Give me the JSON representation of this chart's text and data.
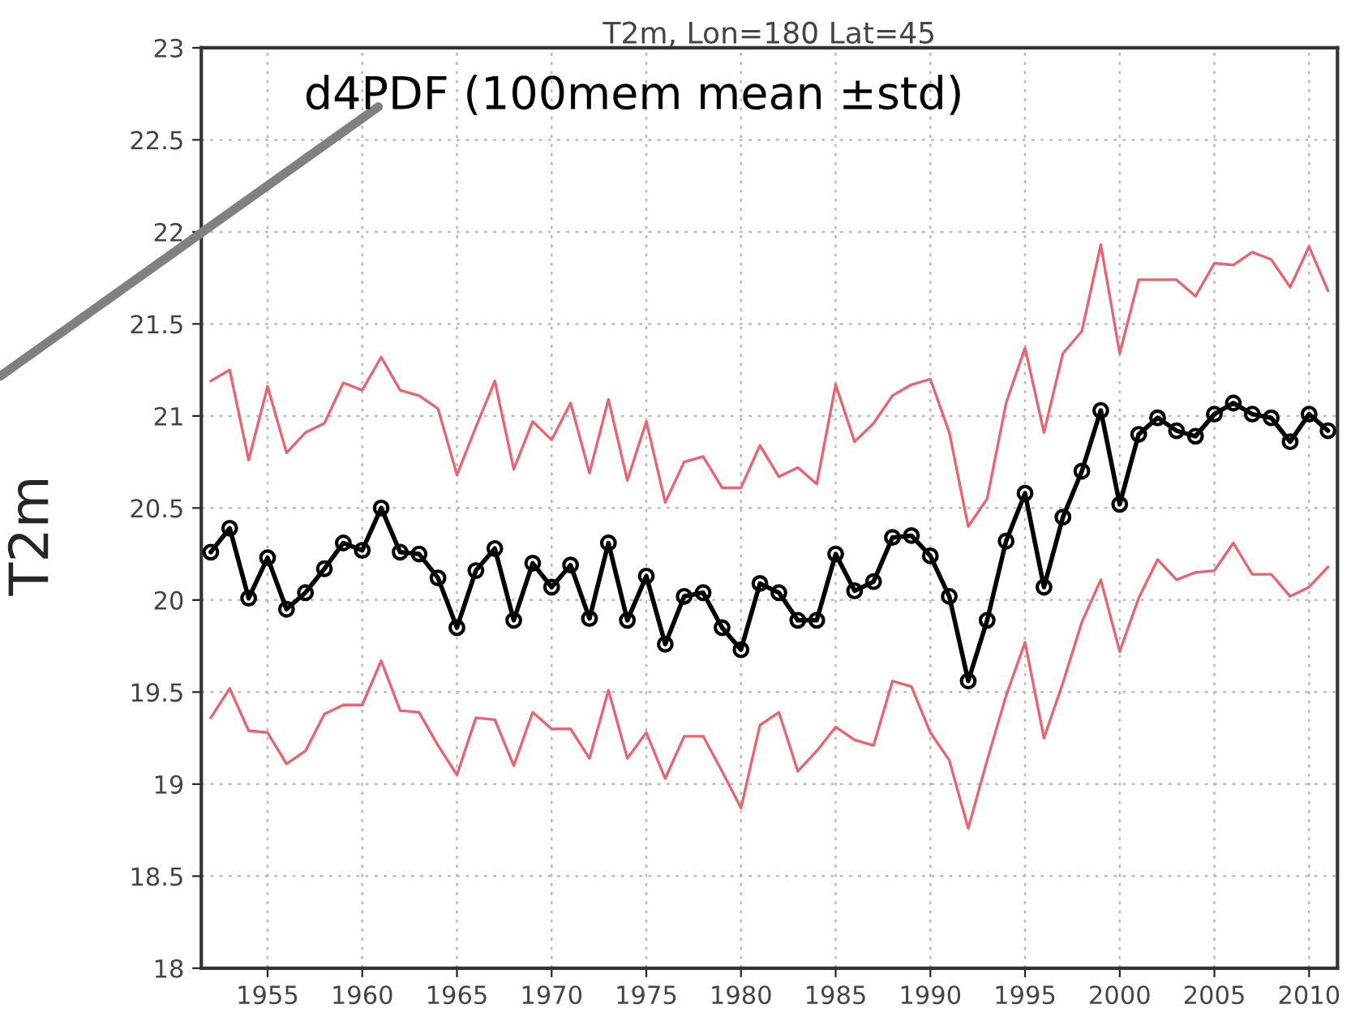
{
  "chart_data": {
    "type": "line",
    "title": "T2m, Lon=180 Lat=45",
    "ylabel": "T2m",
    "annotations": [
      "d4PDF (100mem mean ±std)"
    ],
    "x": [
      1952,
      1953,
      1954,
      1955,
      1956,
      1957,
      1958,
      1959,
      1960,
      1961,
      1962,
      1963,
      1964,
      1965,
      1966,
      1967,
      1968,
      1969,
      1970,
      1971,
      1972,
      1973,
      1974,
      1975,
      1976,
      1977,
      1978,
      1979,
      1980,
      1981,
      1982,
      1983,
      1984,
      1985,
      1986,
      1987,
      1988,
      1989,
      1990,
      1991,
      1992,
      1993,
      1994,
      1995,
      1996,
      1997,
      1998,
      1999,
      2000,
      2001,
      2002,
      2003,
      2004,
      2005,
      2006,
      2007,
      2008,
      2009,
      2010,
      2011
    ],
    "series": [
      {
        "color": "#e8646e",
        "marker": "none",
        "values": [
          21.19,
          21.25,
          20.76,
          21.16,
          20.8,
          20.91,
          20.96,
          21.18,
          21.14,
          21.32,
          21.14,
          21.11,
          21.04,
          20.68,
          20.94,
          21.19,
          20.71,
          20.97,
          20.87,
          21.07,
          20.69,
          21.09,
          20.65,
          20.97,
          20.53,
          20.75,
          20.78,
          20.61,
          20.61,
          20.84,
          20.67,
          20.72,
          20.63,
          21.17,
          20.86,
          20.96,
          21.11,
          21.17,
          21.2,
          20.91,
          20.4,
          20.55,
          21.07,
          21.37,
          20.91,
          21.34,
          21.46,
          21.93,
          21.34,
          21.74,
          21.74,
          21.74,
          21.65,
          21.83,
          21.82,
          21.89,
          21.85,
          21.7,
          21.92,
          21.68
        ]
      },
      {
        "color": "#e8646e",
        "marker": "none",
        "values": [
          19.36,
          19.52,
          19.29,
          19.28,
          19.11,
          19.18,
          19.38,
          19.43,
          19.43,
          19.67,
          19.4,
          19.39,
          19.21,
          19.05,
          19.36,
          19.35,
          19.1,
          19.39,
          19.3,
          19.3,
          19.14,
          19.51,
          19.14,
          19.28,
          19.03,
          19.26,
          19.26,
          19.07,
          18.87,
          19.32,
          19.39,
          19.07,
          19.18,
          19.31,
          19.24,
          19.21,
          19.56,
          19.53,
          19.28,
          19.13,
          18.76,
          19.13,
          19.48,
          19.77,
          19.25,
          19.55,
          19.88,
          20.11,
          19.72,
          20.01,
          20.22,
          20.11,
          20.15,
          20.16,
          20.31,
          20.14,
          20.14,
          20.02,
          20.07,
          20.18
        ]
      },
      {
        "color": "#000000",
        "marker": "circle",
        "values": [
          20.26,
          20.39,
          20.01,
          20.23,
          19.95,
          20.04,
          20.17,
          20.31,
          20.27,
          20.5,
          20.26,
          20.25,
          20.12,
          19.85,
          20.16,
          20.28,
          19.89,
          20.2,
          20.07,
          20.19,
          19.9,
          20.31,
          19.89,
          20.13,
          19.76,
          20.02,
          20.04,
          19.85,
          19.73,
          20.09,
          20.04,
          19.89,
          19.89,
          20.25,
          20.05,
          20.1,
          20.34,
          20.35,
          20.24,
          20.02,
          19.56,
          19.89,
          20.32,
          20.58,
          20.07,
          20.45,
          20.7,
          21.03,
          20.52,
          20.9,
          20.99,
          20.92,
          20.89,
          21.01,
          21.07,
          21.01,
          20.99,
          20.86,
          21.01,
          20.92
        ]
      }
    ],
    "xlim": [
      1951.5,
      2011.5
    ],
    "xticks": [
      1955,
      1960,
      1965,
      1970,
      1975,
      1980,
      1985,
      1990,
      1995,
      2000,
      2005,
      2010
    ],
    "ylim": [
      18,
      23
    ],
    "yticks": [
      18,
      18.5,
      19,
      19.5,
      20,
      20.5,
      21,
      21.5,
      22,
      22.5,
      23
    ],
    "grid": true,
    "line_style": "solid"
  }
}
